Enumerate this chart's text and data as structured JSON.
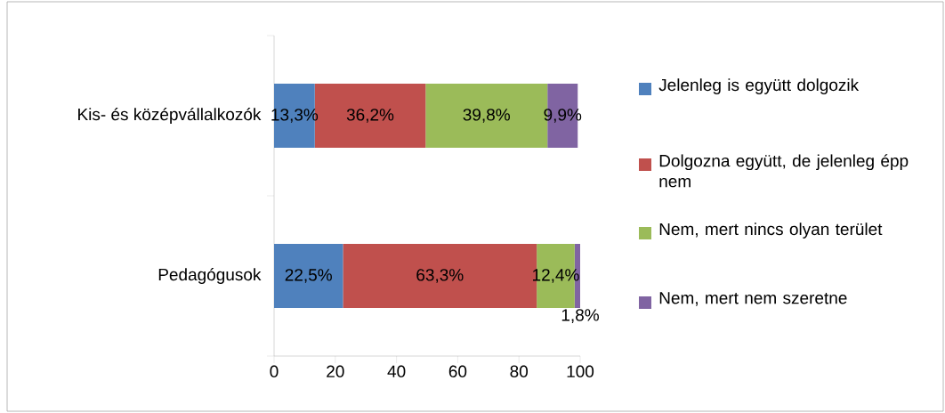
{
  "chart_data": {
    "type": "bar",
    "orientation": "horizontal",
    "stacked": true,
    "categories": [
      "Kis- és középvállalkozók",
      "Pedagógusok"
    ],
    "series": [
      {
        "name": "Jelenleg is együtt dolgozik",
        "color": "#4f81bd",
        "values": [
          13.3,
          22.5
        ],
        "value_labels": [
          "13,3%",
          "22,5%"
        ]
      },
      {
        "name": "Dolgozna együtt, de jelenleg épp nem",
        "color": "#c0504d",
        "values": [
          36.2,
          63.3
        ],
        "value_labels": [
          "36,2%",
          "63,3%"
        ]
      },
      {
        "name": "Nem, mert nincs olyan terület",
        "color": "#9bbb59",
        "values": [
          39.8,
          12.4
        ],
        "value_labels": [
          "39,8%",
          "12,4%"
        ]
      },
      {
        "name": "Nem, mert nem szeretne",
        "color": "#8064a2",
        "values": [
          9.9,
          1.8
        ],
        "value_labels": [
          "9,9%",
          "1,8%"
        ]
      }
    ],
    "xlim": [
      0,
      100
    ],
    "xticks": [
      0,
      20,
      40,
      60,
      80,
      100
    ],
    "grid": false,
    "legend": "right"
  }
}
